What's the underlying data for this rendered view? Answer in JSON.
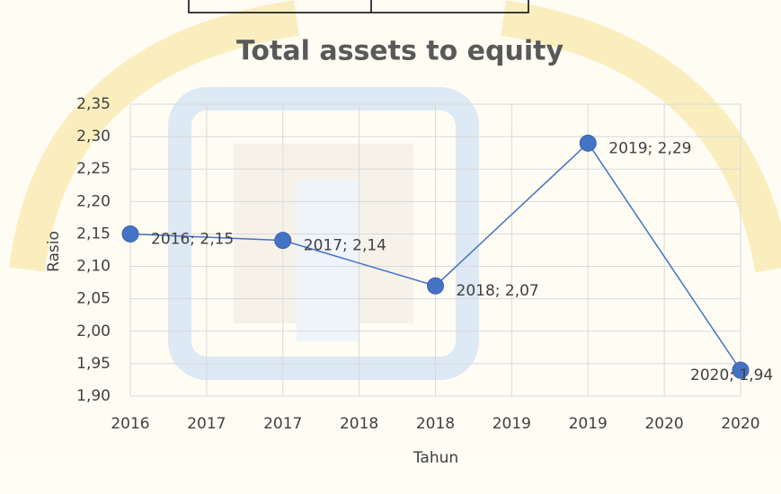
{
  "chart_data": {
    "type": "line",
    "title": "Total assets to equity",
    "x_label": "Tahun",
    "y_label": "Rasio",
    "x": [
      2016,
      2017,
      2018,
      2019,
      2020
    ],
    "values": [
      2.15,
      2.14,
      2.07,
      2.29,
      1.94
    ],
    "value_labels": [
      "2016; 2,15",
      "2017; 2,14",
      "2018; 2,07",
      "2019; 2,29",
      "2020; 1,94"
    ],
    "color": "#4472c4",
    "xlim": [
      2016,
      2020
    ],
    "xticks": [
      2016,
      {
        "value": 2016.5,
        "label": "2017"
      },
      2017,
      {
        "value": 2017.5,
        "label": "2018"
      },
      2018,
      {
        "value": 2018.5,
        "label": "2019"
      },
      2019,
      {
        "value": 2019.5,
        "label": "2020"
      },
      2020
    ],
    "ylim": [
      1.9,
      2.35
    ],
    "yticks": [
      {
        "value": 1.9,
        "label": "1,90"
      },
      {
        "value": 1.95,
        "label": "1,95"
      },
      {
        "value": 2.0,
        "label": "2,00"
      },
      {
        "value": 2.05,
        "label": "2,05"
      },
      {
        "value": 2.1,
        "label": "2,10"
      },
      {
        "value": 2.15,
        "label": "2,15"
      },
      {
        "value": 2.2,
        "label": "2,20"
      },
      {
        "value": 2.25,
        "label": "2,25"
      },
      {
        "value": 2.3,
        "label": "2,30"
      },
      {
        "value": 2.35,
        "label": "2,35"
      }
    ],
    "grid": true
  }
}
